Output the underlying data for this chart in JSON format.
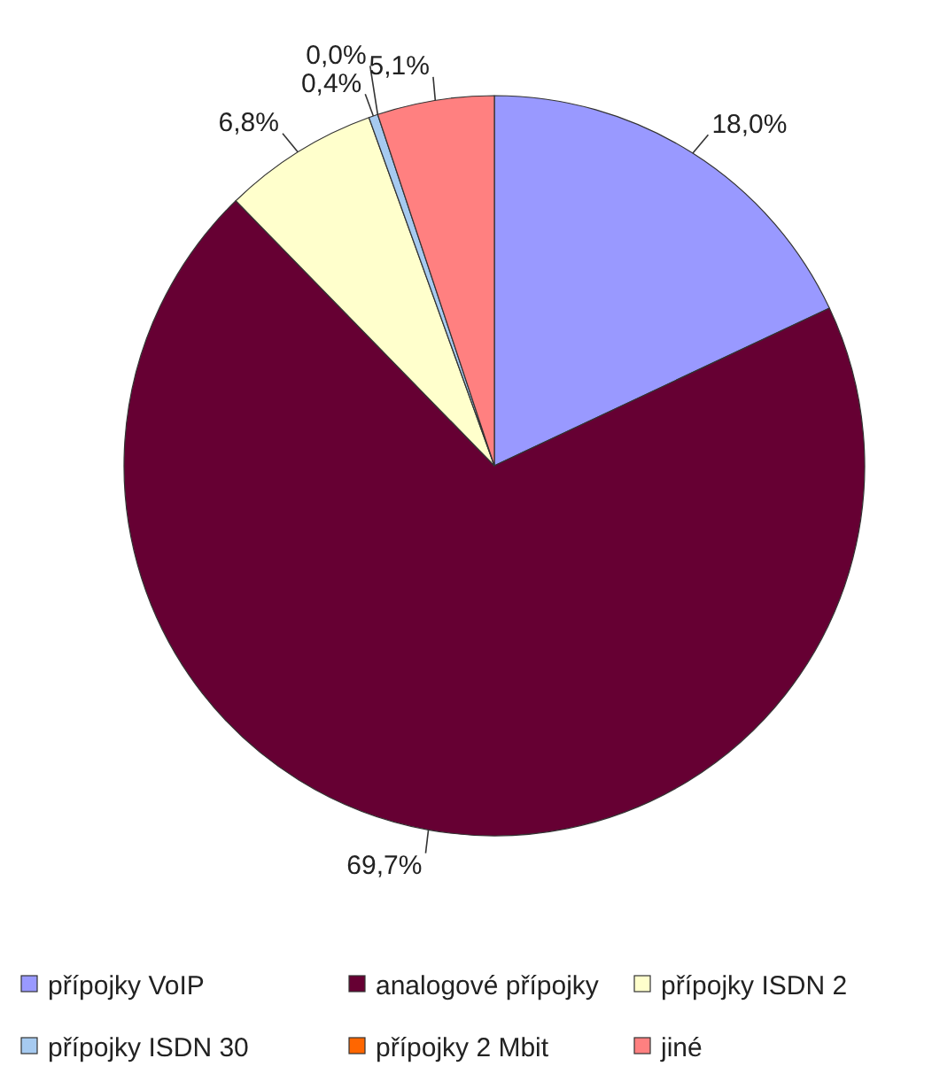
{
  "chart_data": {
    "type": "pie",
    "categories": [
      "přípojky VoIP",
      "analogové přípojky",
      "přípojky ISDN 2",
      "přípojky ISDN 30",
      "přípojky 2 Mbit",
      "jiné"
    ],
    "values": [
      18.0,
      69.7,
      6.8,
      0.4,
      0.0,
      5.1
    ],
    "value_labels": [
      "18,0%",
      "69,7%",
      "6,8%",
      "0,4%",
      "0,0%",
      "5,1%"
    ],
    "colors": [
      "#9999ff",
      "#660033",
      "#ffffcc",
      "#a6caf0",
      "#ff6600",
      "#ff8080"
    ],
    "legend": "bottom"
  }
}
